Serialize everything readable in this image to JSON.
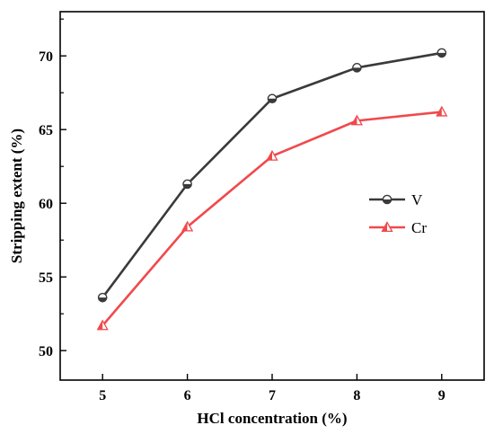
{
  "chart_data": {
    "type": "line",
    "title": "",
    "xlabel": "HCl concentration (%)",
    "ylabel": "Stripping extent (%)",
    "x": [
      5,
      6,
      7,
      8,
      9
    ],
    "xlim": [
      4.5,
      9.5
    ],
    "ylim": [
      48,
      73
    ],
    "xticks": [
      "5",
      "6",
      "7",
      "8",
      "9"
    ],
    "yticks": [
      "50",
      "55",
      "60",
      "65",
      "70"
    ],
    "ytick_values": [
      50,
      55,
      60,
      65,
      70
    ],
    "grid": false,
    "legend_position": "right",
    "series": [
      {
        "name": "V",
        "values": [
          53.6,
          61.3,
          67.1,
          69.2,
          70.2
        ],
        "color": "#3a3a3a",
        "marker": "half-filled-circle"
      },
      {
        "name": "Cr",
        "values": [
          51.7,
          58.4,
          63.2,
          65.6,
          66.2
        ],
        "color": "#f0494c",
        "marker": "half-filled-triangle"
      }
    ]
  }
}
